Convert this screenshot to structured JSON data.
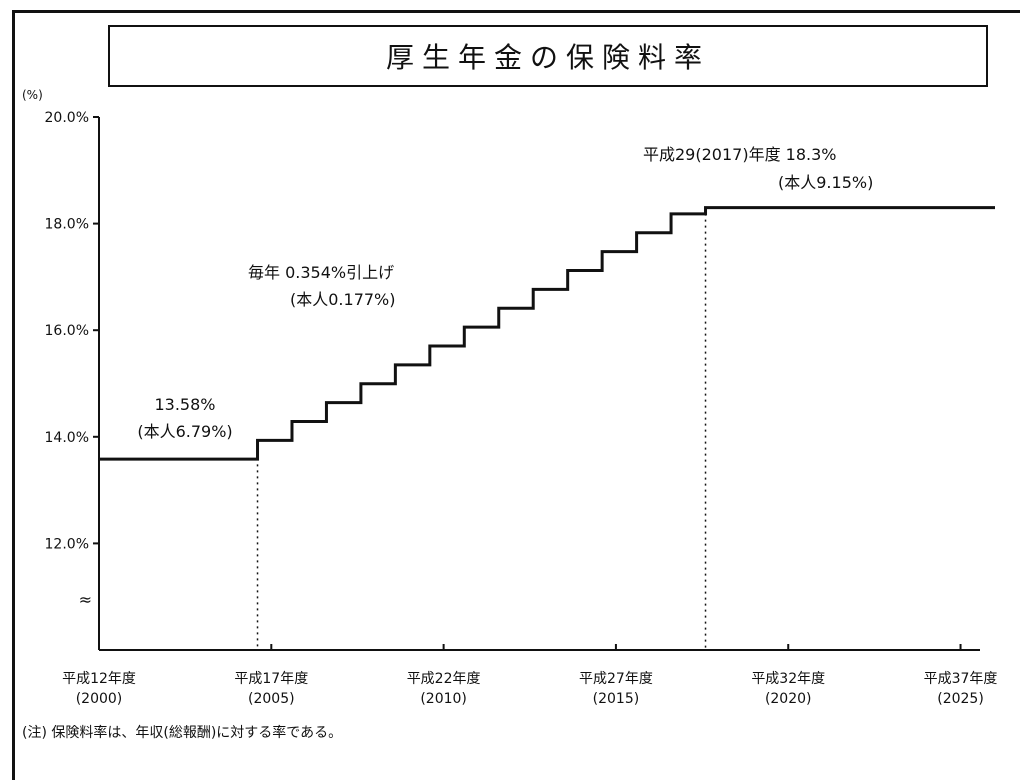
{
  "chart_data": {
    "type": "line",
    "title": "厚生年金の保険料率",
    "ylabel": "(%)",
    "ylim": [
      10,
      20
    ],
    "yticks": [
      {
        "value": 20,
        "label": "20.0%"
      },
      {
        "value": 18,
        "label": "18.0%"
      },
      {
        "value": 16,
        "label": "16.0%"
      },
      {
        "value": 14,
        "label": "14.0%"
      },
      {
        "value": 12,
        "label": "12.0%"
      }
    ],
    "axis_break_symbol": "≈",
    "xlim": [
      2000,
      2026
    ],
    "xticks": [
      {
        "value": 2000,
        "line1": "平成12年度",
        "line2": "(2000)"
      },
      {
        "value": 2005,
        "line1": "平成17年度",
        "line2": "(2005)"
      },
      {
        "value": 2010,
        "line1": "平成22年度",
        "line2": "(2010)"
      },
      {
        "value": 2015,
        "line1": "平成27年度",
        "line2": "(2015)"
      },
      {
        "value": 2020,
        "line1": "平成32年度",
        "line2": "(2020)"
      },
      {
        "value": 2025,
        "line1": "平成37年度",
        "line2": "(2025)"
      }
    ],
    "series": [
      {
        "step": true,
        "x": [
          2000,
          2004.6,
          2005.6,
          2006.6,
          2007.6,
          2008.6,
          2009.6,
          2010.6,
          2011.6,
          2012.6,
          2013.6,
          2014.6,
          2015.6,
          2016.6,
          2017.6,
          2026
        ],
        "y": [
          13.58,
          13.934,
          14.288,
          14.642,
          14.996,
          15.35,
          15.704,
          16.058,
          16.412,
          16.766,
          17.12,
          17.474,
          17.828,
          18.182,
          18.3,
          18.3
        ]
      }
    ],
    "vlines": [
      2004.6,
      2017.6
    ],
    "annotations": [
      {
        "line1": "13.58%",
        "line2": "(本人6.79%)"
      },
      {
        "line1": "毎年 0.354%引上げ",
        "line2": "(本人0.177%)"
      },
      {
        "line1": "平成29(2017)年度 18.3%",
        "line2": "(本人9.15%)"
      }
    ],
    "grid": false
  },
  "footnote": "(注) 保険料率は、年収(総報酬)に対する率である。"
}
